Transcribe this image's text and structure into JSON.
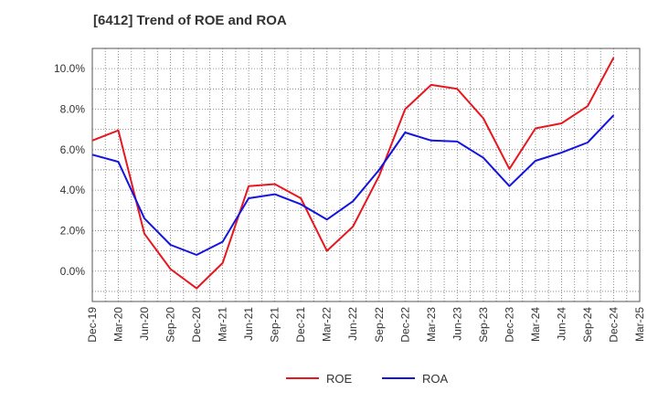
{
  "chart_data": {
    "type": "line",
    "title": "[6412]  Trend of ROE and ROA",
    "xlabel": "",
    "ylabel": "",
    "categories": [
      "Dec-19",
      "Mar-20",
      "Jun-20",
      "Sep-20",
      "Dec-20",
      "Mar-21",
      "Jun-21",
      "Sep-21",
      "Dec-21",
      "Mar-22",
      "Jun-22",
      "Sep-22",
      "Dec-22",
      "Mar-23",
      "Jun-23",
      "Sep-23",
      "Dec-23",
      "Mar-24",
      "Jun-24",
      "Sep-24",
      "Dec-24",
      "Mar-25"
    ],
    "ylim": [
      -1.5,
      11.0
    ],
    "yticks": [
      0.0,
      2.0,
      4.0,
      6.0,
      8.0,
      10.0
    ],
    "ytick_labels": [
      "0.0%",
      "2.0%",
      "4.0%",
      "6.0%",
      "8.0%",
      "10.0%"
    ],
    "grid": true,
    "legend_position": "bottom",
    "series": [
      {
        "name": "ROE",
        "color": "#e8171f",
        "values": [
          6.45,
          6.95,
          1.85,
          0.1,
          -0.85,
          0.4,
          4.2,
          4.3,
          3.6,
          1.0,
          2.2,
          4.7,
          8.0,
          9.2,
          9.0,
          7.55,
          5.05,
          7.05,
          7.3,
          8.15,
          10.55,
          null
        ]
      },
      {
        "name": "ROA",
        "color": "#1414e0",
        "values": [
          5.75,
          5.4,
          2.6,
          1.3,
          0.8,
          1.45,
          3.6,
          3.8,
          3.3,
          2.55,
          3.45,
          5.0,
          6.85,
          6.45,
          6.4,
          5.6,
          4.2,
          5.45,
          5.85,
          6.35,
          7.7,
          null
        ]
      }
    ]
  }
}
